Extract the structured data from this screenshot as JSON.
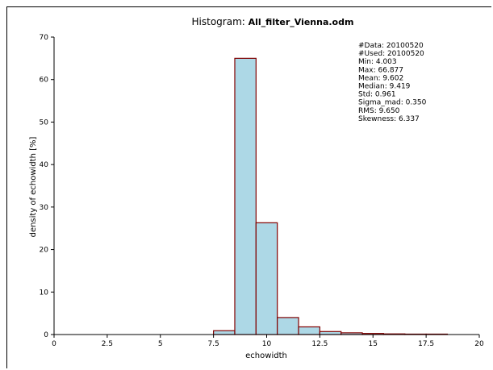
{
  "window": {
    "title_prefix": "Histogram: ",
    "title_file": "All_filter_Vienna.odm"
  },
  "chart_data": {
    "type": "bar",
    "title": "Histogram: All_filter_Vienna.odm",
    "xlabel": "echowidth",
    "ylabel": "density of echowidth [%]",
    "xlim": [
      0,
      20
    ],
    "ylim": [
      0,
      70
    ],
    "xticks": [
      0,
      2.5,
      5,
      7.5,
      10,
      12.5,
      15,
      17.5,
      20
    ],
    "yticks": [
      0,
      10,
      20,
      30,
      40,
      50,
      60,
      70
    ],
    "bin_width": 1,
    "bins": [
      {
        "x0": 7.5,
        "x1": 8.5,
        "value": 0.9
      },
      {
        "x0": 8.5,
        "x1": 9.5,
        "value": 65.0
      },
      {
        "x0": 9.5,
        "x1": 10.5,
        "value": 26.3
      },
      {
        "x0": 10.5,
        "x1": 11.5,
        "value": 4.0
      },
      {
        "x0": 11.5,
        "x1": 12.5,
        "value": 1.8
      },
      {
        "x0": 12.5,
        "x1": 13.5,
        "value": 0.7
      },
      {
        "x0": 13.5,
        "x1": 14.5,
        "value": 0.4
      },
      {
        "x0": 14.5,
        "x1": 15.5,
        "value": 0.25
      },
      {
        "x0": 15.5,
        "x1": 16.5,
        "value": 0.15
      },
      {
        "x0": 16.5,
        "x1": 17.5,
        "value": 0.1
      },
      {
        "x0": 17.5,
        "x1": 18.5,
        "value": 0.1
      }
    ],
    "bar_fill": "#add8e6",
    "bar_edge": "#800000",
    "grid": false,
    "stats": [
      "#Data: 20100520",
      "#Used: 20100520",
      "Min: 4.003",
      "Max: 66.877",
      "Mean: 9.602",
      "Median: 9.419",
      "Std: 0.961",
      "Sigma_mad: 0.350",
      "RMS: 9.650",
      "Skewness: 6.337"
    ],
    "stats_placement": "top-right"
  }
}
